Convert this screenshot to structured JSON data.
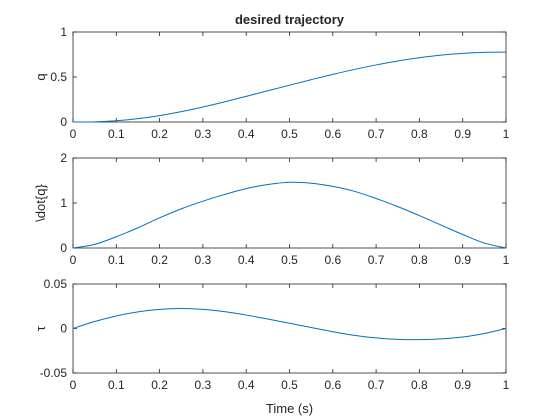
{
  "figure": {
    "series_color": "#0072bd",
    "axis_color": "#262626"
  },
  "chart_data": [
    {
      "type": "line",
      "title": "desired trajectory",
      "xlabel": "",
      "ylabel": "q",
      "xlim": [
        0,
        1
      ],
      "ylim": [
        0,
        1
      ],
      "xticks": [
        0,
        0.1,
        0.2,
        0.3,
        0.4,
        0.5,
        0.6,
        0.7,
        0.8,
        0.9,
        1
      ],
      "xtick_labels": [
        "0",
        "0.1",
        "0.2",
        "0.3",
        "0.4",
        "0.5",
        "0.6",
        "0.7",
        "0.8",
        "0.9",
        "1"
      ],
      "yticks": [
        0,
        0.5,
        1
      ],
      "ytick_labels": [
        "0",
        "0.5",
        "1"
      ],
      "grid": false,
      "series": [
        {
          "x": [
            0,
            0.05,
            0.1,
            0.15,
            0.2,
            0.25,
            0.3,
            0.35,
            0.4,
            0.45,
            0.5,
            0.55,
            0.6,
            0.65,
            0.7,
            0.75,
            0.8,
            0.85,
            0.9,
            0.95,
            1
          ],
          "y": [
            0,
            0.002,
            0.014,
            0.037,
            0.071,
            0.115,
            0.167,
            0.224,
            0.285,
            0.347,
            0.409,
            0.47,
            0.529,
            0.584,
            0.634,
            0.678,
            0.714,
            0.743,
            0.763,
            0.774,
            0.776
          ]
        }
      ]
    },
    {
      "type": "line",
      "title": "",
      "xlabel": "",
      "ylabel": "\\dot{q}",
      "xlim": [
        0,
        1
      ],
      "ylim": [
        0,
        2
      ],
      "xticks": [
        0,
        0.1,
        0.2,
        0.3,
        0.4,
        0.5,
        0.6,
        0.7,
        0.8,
        0.9,
        1
      ],
      "xtick_labels": [
        "0",
        "0.1",
        "0.2",
        "0.3",
        "0.4",
        "0.5",
        "0.6",
        "0.7",
        "0.8",
        "0.9",
        "1"
      ],
      "yticks": [
        0,
        1,
        2
      ],
      "ytick_labels": [
        "0",
        "1",
        "2"
      ],
      "grid": false,
      "series": [
        {
          "x": [
            0,
            0.05,
            0.1,
            0.15,
            0.2,
            0.25,
            0.3,
            0.35,
            0.4,
            0.45,
            0.5,
            0.55,
            0.6,
            0.65,
            0.7,
            0.75,
            0.8,
            0.85,
            0.9,
            0.95,
            1
          ],
          "y": [
            0,
            0.08,
            0.25,
            0.45,
            0.67,
            0.87,
            1.04,
            1.19,
            1.32,
            1.41,
            1.46,
            1.44,
            1.37,
            1.26,
            1.1,
            0.92,
            0.72,
            0.51,
            0.3,
            0.11,
            0
          ]
        }
      ]
    },
    {
      "type": "line",
      "title": "",
      "xlabel": "Time (s)",
      "ylabel": "τ",
      "xlim": [
        0,
        1
      ],
      "ylim": [
        -0.05,
        0.05
      ],
      "xticks": [
        0,
        0.1,
        0.2,
        0.3,
        0.4,
        0.5,
        0.6,
        0.7,
        0.8,
        0.9,
        1
      ],
      "xtick_labels": [
        "0",
        "0.1",
        "0.2",
        "0.3",
        "0.4",
        "0.5",
        "0.6",
        "0.7",
        "0.8",
        "0.9",
        "1"
      ],
      "yticks": [
        -0.05,
        0,
        0.05
      ],
      "ytick_labels": [
        "-0.05",
        "0",
        "0.05"
      ],
      "grid": false,
      "series": [
        {
          "x": [
            0,
            0.05,
            0.1,
            0.15,
            0.2,
            0.25,
            0.3,
            0.35,
            0.4,
            0.45,
            0.5,
            0.55,
            0.6,
            0.65,
            0.7,
            0.75,
            0.8,
            0.85,
            0.9,
            0.95,
            1
          ],
          "y": [
            0,
            0.0079,
            0.0141,
            0.0187,
            0.0215,
            0.0224,
            0.0215,
            0.0189,
            0.0151,
            0.0106,
            0.0059,
            0.0011,
            -0.0036,
            -0.0077,
            -0.0106,
            -0.0122,
            -0.0125,
            -0.0117,
            -0.0096,
            -0.0056,
            0
          ]
        }
      ]
    }
  ]
}
